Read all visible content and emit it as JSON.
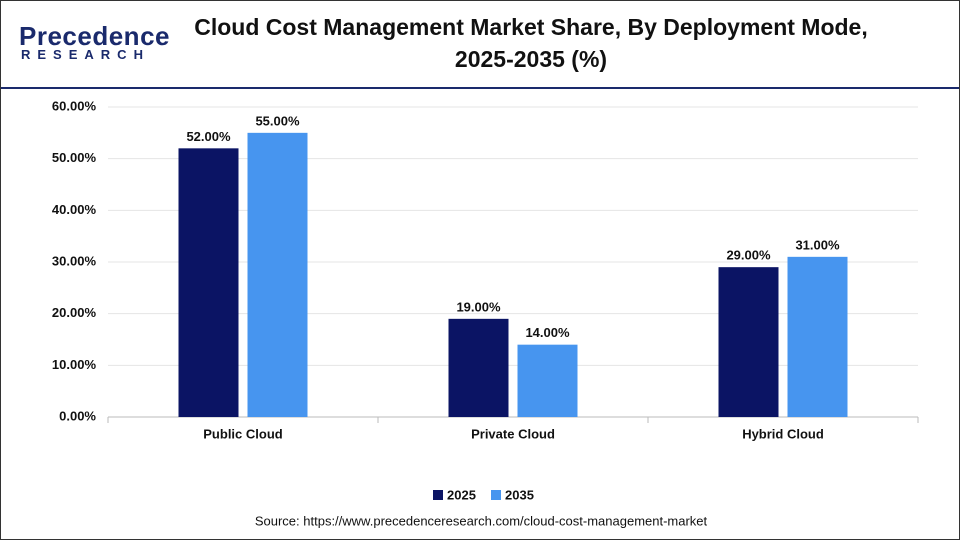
{
  "logo": {
    "name": "Precedence",
    "tagline": "RESEARCH"
  },
  "chart_data": {
    "type": "bar",
    "title": "Cloud Cost Management Market Share, By Deployment Mode, 2025-2035 (%)",
    "categories": [
      "Public Cloud",
      "Private Cloud",
      "Hybrid Cloud"
    ],
    "series": [
      {
        "name": "2025",
        "color": "#0b1464",
        "values": [
          52,
          19,
          29
        ],
        "value_labels": [
          "52.00%",
          "19.00%",
          "29.00%"
        ]
      },
      {
        "name": "2035",
        "color": "#4795ef",
        "values": [
          55,
          14,
          31
        ],
        "value_labels": [
          "55.00%",
          "14.00%",
          "31.00%"
        ]
      }
    ],
    "ylim": [
      0,
      60
    ],
    "yticks": [
      {
        "value": 0,
        "label": "0.00%"
      },
      {
        "value": 10,
        "label": "10.00%"
      },
      {
        "value": 20,
        "label": "20.00%"
      },
      {
        "value": 30,
        "label": "30.00%"
      },
      {
        "value": 40,
        "label": "40.00%"
      },
      {
        "value": 50,
        "label": "50.00%"
      },
      {
        "value": 60,
        "label": "60.00%"
      }
    ],
    "grid": true,
    "legend": "bottom",
    "source": "Source: https://www.precedenceresearch.com/cloud-cost-management-market"
  }
}
